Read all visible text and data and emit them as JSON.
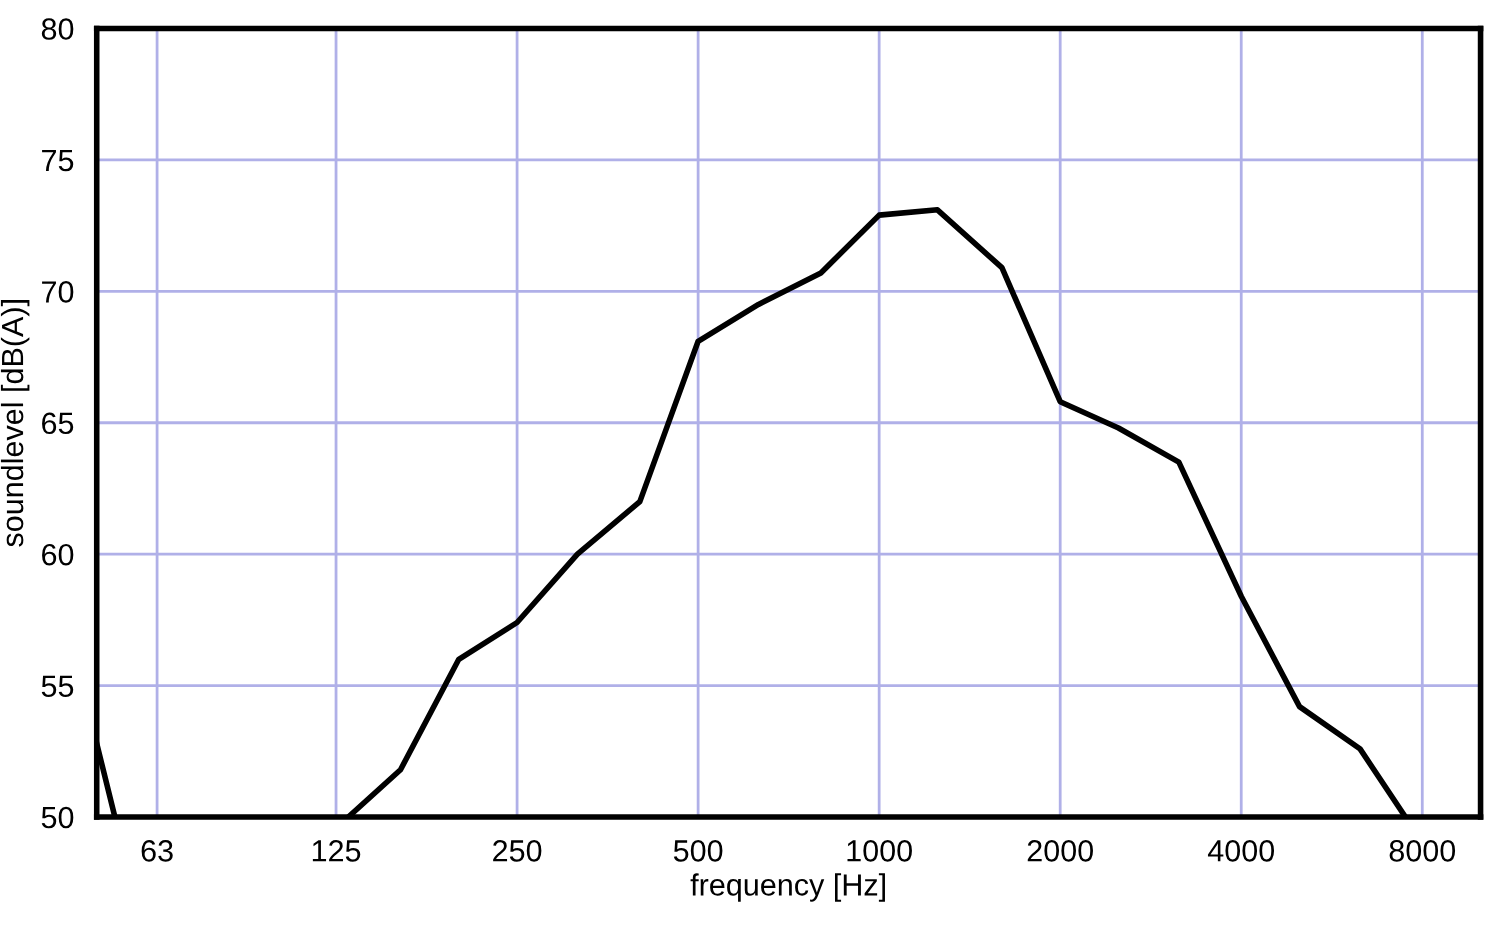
{
  "chart_data": {
    "type": "line",
    "xlabel": "frequency [Hz]",
    "ylabel": "soundlevel [dB(A)]",
    "log": "x",
    "x": [
      50,
      53.6,
      100,
      131,
      160,
      200,
      250,
      315,
      400,
      500,
      630,
      800,
      1000,
      1250,
      1600,
      2000,
      2500,
      3150,
      4000,
      5000,
      6300,
      7500
    ],
    "series": [
      {
        "color": "#000000",
        "values": [
          52.8,
          50,
          null,
          50,
          51.8,
          56.0,
          57.4,
          60.0,
          62.0,
          68.1,
          69.5,
          70.7,
          72.9,
          73.1,
          70.9,
          65.8,
          64.8,
          63.5,
          58.4,
          54.2,
          52.6,
          50
        ]
      }
    ],
    "xlim": [
      50,
      10000
    ],
    "xticks": [
      63,
      125,
      250,
      500,
      1000,
      2000,
      4000,
      8000
    ],
    "ylim": [
      50,
      80
    ],
    "yticks": [
      50,
      55,
      60,
      65,
      70,
      75,
      80
    ],
    "grid": true,
    "marker": "none",
    "line_style": "solid"
  }
}
